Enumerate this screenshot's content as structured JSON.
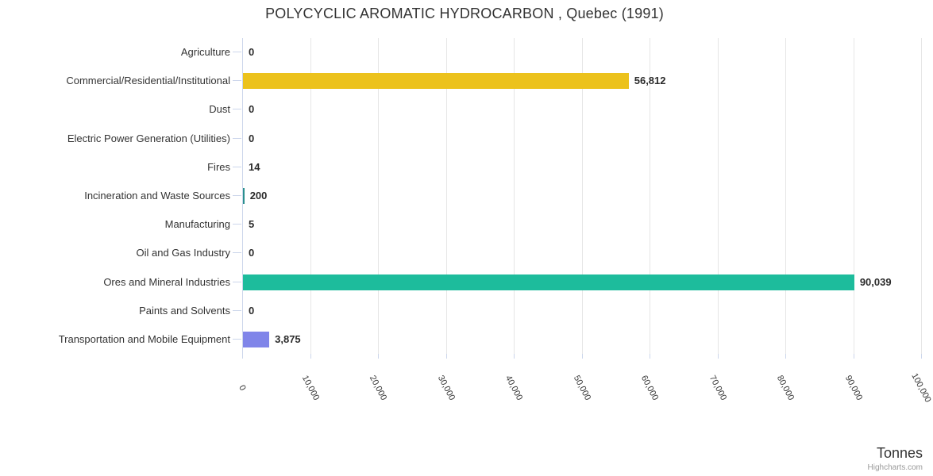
{
  "title": "POLYCYCLIC AROMATIC HYDROCARBON , Quebec (1991)",
  "chart_data": {
    "type": "bar",
    "orientation": "horizontal",
    "title": "POLYCYCLIC AROMATIC HYDROCARBON , Quebec (1991)",
    "categories": [
      "Agriculture",
      "Commercial/Residential/Institutional",
      "Dust",
      "Electric Power Generation (Utilities)",
      "Fires",
      "Incineration and Waste Sources",
      "Manufacturing",
      "Oil and Gas Industry",
      "Ores and Mineral Industries",
      "Paints and Solvents",
      "Transportation and Mobile Equipment"
    ],
    "values": [
      0,
      56812,
      0,
      0,
      14,
      200,
      5,
      0,
      90039,
      0,
      3875
    ],
    "value_labels": [
      "0",
      "56,812",
      "0",
      "0",
      "14",
      "200",
      "5",
      "0",
      "90,039",
      "0",
      "3,875"
    ],
    "bar_colors": [
      null,
      "#ECC21C",
      null,
      null,
      null,
      "#2B908F",
      null,
      null,
      "#1DBC9C",
      null,
      "#8085E9"
    ],
    "xlabel": "Tonnes",
    "ylabel": "",
    "xlim": [
      0,
      100000
    ],
    "x_tick_interval": 10000,
    "x_tick_labels": [
      "0",
      "10,000",
      "20,000",
      "30,000",
      "40,000",
      "50,000",
      "60,000",
      "70,000",
      "80,000",
      "90,000",
      "100,000"
    ],
    "grid": true,
    "legend": false
  },
  "credits": {
    "label": "Highcharts.com"
  },
  "colors": {
    "background": "#FFFFFF",
    "grid": "#E6E6E6",
    "axis": "#CCD6EB",
    "title_text": "#333333",
    "category_text": "#333333",
    "value_label_text": "#2B2B2B",
    "tick_label_text": "#3A3A3A",
    "credits_text": "#999999"
  }
}
